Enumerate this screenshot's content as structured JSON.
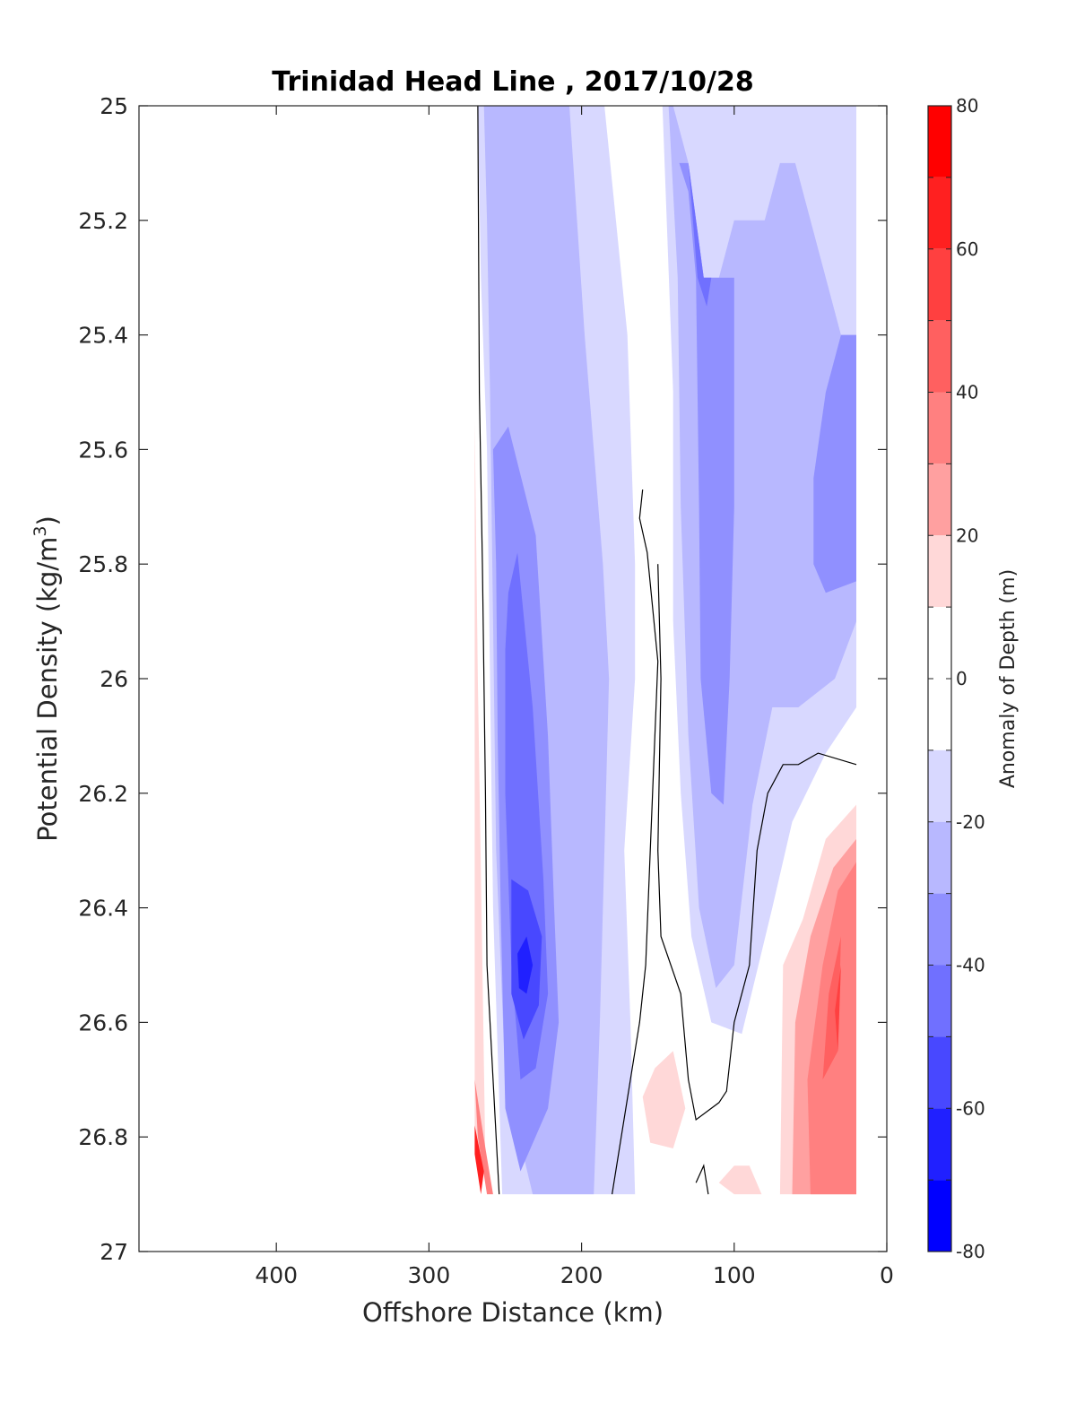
{
  "chart_data": {
    "type": "contour",
    "title": "Trinidad Head Line , 2017/10/28",
    "xlabel": "Offshore Distance (km)",
    "ylabel": "Potential Density (kg/m",
    "ylabel_sup": "3",
    "ylabel_close": ")",
    "colorbar_label": "Anomaly of Depth (m)",
    "xlim": [
      490,
      0
    ],
    "ylim": [
      25,
      27
    ],
    "x_ticks": [
      400,
      300,
      200,
      100,
      0
    ],
    "x_tick_labels": [
      "400",
      "300",
      "200",
      "100",
      "0"
    ],
    "y_ticks": [
      25,
      25.2,
      25.4,
      25.6,
      25.8,
      26,
      26.2,
      26.4,
      26.6,
      26.8,
      27
    ],
    "y_tick_labels": [
      "25",
      "25.2",
      "25.4",
      "25.6",
      "25.8",
      "26",
      "26.2",
      "26.4",
      "26.6",
      "26.8",
      "27"
    ],
    "colorbar": {
      "range": [
        -80,
        80
      ],
      "ticks": [
        80,
        60,
        40,
        20,
        0,
        -20,
        -40,
        -60,
        -80
      ],
      "tick_labels": [
        "80",
        "60",
        "40",
        "20",
        "0",
        "-20",
        "-40",
        "-60",
        "-80"
      ],
      "levels": [
        {
          "from": 70,
          "to": 80,
          "color": "#ff0000"
        },
        {
          "from": 60,
          "to": 70,
          "color": "#ff2020"
        },
        {
          "from": 50,
          "to": 60,
          "color": "#ff4040"
        },
        {
          "from": 40,
          "to": 50,
          "color": "#ff6060"
        },
        {
          "from": 30,
          "to": 40,
          "color": "#ff8080"
        },
        {
          "from": 20,
          "to": 30,
          "color": "#ffa0a0"
        },
        {
          "from": 10,
          "to": 20,
          "color": "#ffd8d8"
        },
        {
          "from": -10,
          "to": 10,
          "color": "#ffffff"
        },
        {
          "from": -20,
          "to": -10,
          "color": "#d8d8ff"
        },
        {
          "from": -30,
          "to": -20,
          "color": "#b8b8ff"
        },
        {
          "from": -40,
          "to": -30,
          "color": "#9090ff"
        },
        {
          "from": -50,
          "to": -40,
          "color": "#7070ff"
        },
        {
          "from": -60,
          "to": -50,
          "color": "#4848ff"
        },
        {
          "from": -70,
          "to": -60,
          "color": "#2020ff"
        },
        {
          "from": -80,
          "to": -70,
          "color": "#0000ff"
        }
      ]
    },
    "filled_regions": [
      {
        "level": -20,
        "color": "#d8d8ff",
        "points": [
          [
            268,
            25
          ],
          [
            185,
            25
          ],
          [
            170,
            25.4
          ],
          [
            165,
            25.8
          ],
          [
            165,
            26
          ],
          [
            172,
            26.3
          ],
          [
            168,
            26.6
          ],
          [
            165,
            26.9
          ],
          [
            252,
            26.9
          ],
          [
            258,
            26.4
          ],
          [
            260,
            26
          ],
          [
            262,
            25.6
          ],
          [
            266,
            25.3
          ]
        ]
      },
      {
        "level": -30,
        "color": "#b8b8ff",
        "points": [
          [
            264,
            25
          ],
          [
            208,
            25
          ],
          [
            198,
            25.4
          ],
          [
            186,
            25.8
          ],
          [
            182,
            26
          ],
          [
            185,
            26.3
          ],
          [
            188,
            26.6
          ],
          [
            192,
            26.9
          ],
          [
            232,
            26.9
          ],
          [
            250,
            26.7
          ],
          [
            256,
            26.3
          ],
          [
            258,
            25.9
          ],
          [
            260,
            25.5
          ],
          [
            262,
            25.2
          ]
        ]
      },
      {
        "level": -40,
        "color": "#9090ff",
        "points": [
          [
            258,
            25.6
          ],
          [
            248,
            25.56
          ],
          [
            230,
            25.75
          ],
          [
            222,
            26.1
          ],
          [
            218,
            26.4
          ],
          [
            215,
            26.6
          ],
          [
            222,
            26.75
          ],
          [
            240,
            26.86
          ],
          [
            250,
            26.75
          ],
          [
            253,
            26.4
          ],
          [
            255,
            26.1
          ],
          [
            256,
            25.8
          ]
        ]
      },
      {
        "level": -50,
        "color": "#7070ff",
        "points": [
          [
            248,
            25.85
          ],
          [
            242,
            25.78
          ],
          [
            232,
            26.05
          ],
          [
            225,
            26.35
          ],
          [
            222,
            26.55
          ],
          [
            230,
            26.68
          ],
          [
            240,
            26.7
          ],
          [
            246,
            26.5
          ],
          [
            250,
            26.2
          ],
          [
            250,
            25.95
          ]
        ]
      },
      {
        "level": -60,
        "color": "#4848ff",
        "points": [
          [
            246,
            26.35
          ],
          [
            235,
            26.37
          ],
          [
            226,
            26.45
          ],
          [
            228,
            26.57
          ],
          [
            238,
            26.63
          ],
          [
            246,
            26.55
          ]
        ]
      },
      {
        "level": -70,
        "color": "#2020ff",
        "points": [
          [
            242,
            26.48
          ],
          [
            236,
            26.45
          ],
          [
            232,
            26.5
          ],
          [
            236,
            26.55
          ],
          [
            241,
            26.54
          ]
        ]
      },
      {
        "level": -20,
        "color": "#d8d8ff",
        "points": [
          [
            147,
            25
          ],
          [
            140,
            25.5
          ],
          [
            140,
            25.9
          ],
          [
            135,
            26.2
          ],
          [
            128,
            26.45
          ],
          [
            115,
            26.6
          ],
          [
            95,
            26.62
          ],
          [
            75,
            26.4
          ],
          [
            62,
            26.25
          ],
          [
            40,
            26.13
          ],
          [
            20,
            26.05
          ],
          [
            20,
            25
          ],
          [
            57,
            25
          ]
        ]
      },
      {
        "level": -30,
        "color": "#b8b8ff",
        "points": [
          [
            143,
            25
          ],
          [
            137,
            25.3
          ],
          [
            135,
            25.7
          ],
          [
            130,
            26.1
          ],
          [
            123,
            26.4
          ],
          [
            112,
            26.54
          ],
          [
            100,
            26.5
          ],
          [
            88,
            26.22
          ],
          [
            75,
            26.05
          ],
          [
            58,
            26.05
          ],
          [
            34,
            26
          ],
          [
            20,
            25.9
          ],
          [
            20,
            25.4
          ],
          [
            30,
            25.4
          ],
          [
            60,
            25.1
          ],
          [
            70,
            25.1
          ],
          [
            80,
            25.2
          ],
          [
            100,
            25.2
          ],
          [
            110,
            25.3
          ],
          [
            120,
            25.3
          ],
          [
            130,
            25.1
          ],
          [
            140,
            25
          ]
        ]
      },
      {
        "level": -40,
        "color": "#9090ff",
        "points": [
          [
            136,
            25.1
          ],
          [
            130,
            25.15
          ],
          [
            125,
            25.3
          ],
          [
            123,
            25.7
          ],
          [
            122,
            26.0
          ],
          [
            115,
            26.2
          ],
          [
            107,
            26.22
          ],
          [
            103,
            26.0
          ],
          [
            100,
            25.7
          ],
          [
            100,
            25.3
          ],
          [
            110,
            25.3
          ],
          [
            120,
            25.3
          ],
          [
            130,
            25.1
          ]
        ]
      },
      {
        "level": -40,
        "color": "#9090ff",
        "points": [
          [
            20,
            25.4
          ],
          [
            30,
            25.4
          ],
          [
            40,
            25.5
          ],
          [
            48,
            25.65
          ],
          [
            48,
            25.8
          ],
          [
            40,
            25.85
          ],
          [
            20,
            25.83
          ]
        ]
      },
      {
        "level": -50,
        "color": "#7070ff",
        "points": [
          [
            130,
            25.1
          ],
          [
            124,
            25.3
          ],
          [
            118,
            25.35
          ],
          [
            115,
            25.3
          ],
          [
            120,
            25.3
          ]
        ]
      },
      {
        "level": 20,
        "color": "#ffd8d8",
        "points": [
          [
            270,
            25.55
          ],
          [
            268,
            26.0
          ],
          [
            265,
            26.5
          ],
          [
            263,
            26.85
          ],
          [
            270,
            26.8
          ]
        ]
      },
      {
        "level": 20,
        "color": "#ffd8d8",
        "points": [
          [
            140,
            26.65
          ],
          [
            152,
            26.68
          ],
          [
            160,
            26.73
          ],
          [
            155,
            26.81
          ],
          [
            140,
            26.82
          ],
          [
            132,
            26.75
          ]
        ]
      },
      {
        "level": 20,
        "color": "#ffd8d8",
        "points": [
          [
            20,
            26.22
          ],
          [
            40,
            26.28
          ],
          [
            55,
            26.42
          ],
          [
            68,
            26.5
          ],
          [
            70,
            26.9
          ],
          [
            80,
            26.9
          ],
          [
            100,
            26.9
          ],
          [
            110,
            26.88
          ],
          [
            100,
            26.85
          ],
          [
            90,
            26.85
          ],
          [
            82,
            26.9
          ],
          [
            20,
            26.9
          ]
        ]
      },
      {
        "level": 30,
        "color": "#ffa0a0",
        "points": [
          [
            20,
            26.28
          ],
          [
            35,
            26.33
          ],
          [
            50,
            26.45
          ],
          [
            60,
            26.6
          ],
          [
            62,
            26.9
          ],
          [
            20,
            26.9
          ]
        ]
      },
      {
        "level": 40,
        "color": "#ff8080",
        "points": [
          [
            20,
            26.32
          ],
          [
            32,
            26.37
          ],
          [
            42,
            26.5
          ],
          [
            52,
            26.7
          ],
          [
            50,
            26.9
          ],
          [
            20,
            26.9
          ]
        ]
      },
      {
        "level": 50,
        "color": "#ff6060",
        "points": [
          [
            30,
            26.45
          ],
          [
            38,
            26.55
          ],
          [
            42,
            26.7
          ],
          [
            32,
            26.65
          ]
        ]
      },
      {
        "level": 60,
        "color": "#ff4040",
        "points": [
          [
            30,
            26.5
          ],
          [
            34,
            26.58
          ],
          [
            32,
            26.65
          ]
        ]
      },
      {
        "level": 40,
        "color": "#ff8080",
        "points": [
          [
            270,
            26.7
          ],
          [
            263,
            26.82
          ],
          [
            258,
            26.9
          ],
          [
            262,
            26.9
          ],
          [
            268,
            26.8
          ]
        ]
      },
      {
        "level": 60,
        "color": "#ff2020",
        "points": [
          [
            270,
            26.78
          ],
          [
            264,
            26.86
          ],
          [
            266,
            26.9
          ],
          [
            270,
            26.83
          ]
        ]
      }
    ],
    "zero_contours": [
      {
        "points": [
          [
            268,
            25
          ],
          [
            267,
            25.5
          ],
          [
            265,
            25.8
          ],
          [
            263,
            26.2
          ],
          [
            262,
            26.5
          ],
          [
            258,
            26.7
          ],
          [
            254,
            26.9
          ]
        ]
      },
      {
        "points": [
          [
            160,
            25.67
          ],
          [
            162,
            25.72
          ],
          [
            157,
            25.78
          ],
          [
            150,
            25.97
          ],
          [
            155,
            26.3
          ],
          [
            158,
            26.5
          ],
          [
            162,
            26.6
          ],
          [
            180,
            26.9
          ]
        ]
      },
      {
        "points": [
          [
            150,
            25.8
          ],
          [
            148,
            26.0
          ],
          [
            150,
            26.3
          ],
          [
            148,
            26.45
          ],
          [
            135,
            26.55
          ],
          [
            130,
            26.7
          ],
          [
            125,
            26.77
          ],
          [
            110,
            26.74
          ],
          [
            105,
            26.72
          ],
          [
            100,
            26.6
          ],
          [
            90,
            26.5
          ],
          [
            85,
            26.3
          ],
          [
            78,
            26.2
          ],
          [
            68,
            26.15
          ],
          [
            58,
            26.15
          ],
          [
            45,
            26.13
          ],
          [
            20,
            26.15
          ]
        ]
      },
      {
        "points": [
          [
            125,
            26.88
          ],
          [
            120,
            26.85
          ],
          [
            117,
            26.9
          ]
        ]
      }
    ],
    "grid": false
  }
}
